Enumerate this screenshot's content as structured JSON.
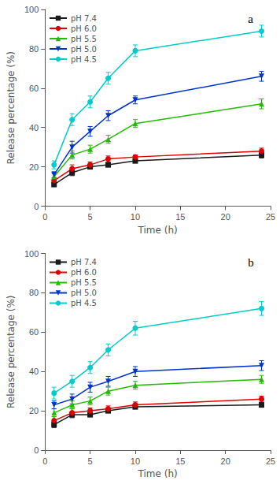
{
  "chart_data": [
    {
      "type": "line",
      "annotation": "a",
      "x": [
        1,
        3,
        5,
        7,
        10,
        24
      ],
      "series": [
        {
          "name": "pH 7.4",
          "color": "#1a1a1a",
          "marker": "square",
          "values": [
            11,
            17,
            20,
            21,
            23,
            26
          ],
          "errors": [
            1.0,
            1.5,
            1.0,
            1.0,
            1.0,
            1.5
          ]
        },
        {
          "name": "pH 6.0",
          "color": "#dd0000",
          "marker": "circle",
          "values": [
            13,
            19,
            21,
            24,
            25,
            28
          ],
          "errors": [
            1.5,
            2.0,
            1.5,
            1.5,
            1.0,
            1.5
          ]
        },
        {
          "name": "pH 5.5",
          "color": "#22bb00",
          "marker": "triangle-up",
          "values": [
            15,
            26,
            29,
            34,
            42,
            52
          ],
          "errors": [
            1.5,
            2.0,
            2.0,
            2.0,
            2.0,
            2.5
          ]
        },
        {
          "name": "pH 5.0",
          "color": "#0033cc",
          "marker": "triangle-down",
          "values": [
            16,
            30,
            38,
            46,
            54,
            66
          ],
          "errors": [
            1.5,
            3.0,
            2.5,
            2.5,
            2.0,
            2.5
          ]
        },
        {
          "name": "pH 4.5",
          "color": "#00cccc",
          "marker": "circle",
          "values": [
            21,
            44,
            53,
            65,
            79,
            89
          ],
          "errors": [
            2.0,
            3.0,
            3.0,
            3.0,
            3.0,
            3.0
          ]
        }
      ],
      "xlabel": "Time (h)",
      "ylabel": "Release percentage (%)",
      "xlim": [
        0,
        25
      ],
      "ylim": [
        0,
        100
      ],
      "xticks": [
        0,
        5,
        10,
        15,
        20,
        25
      ],
      "yticks": [
        0,
        20,
        40,
        60,
        80,
        100
      ],
      "grid": false,
      "legend": "upper left"
    },
    {
      "type": "line",
      "annotation": "b",
      "x": [
        1,
        3,
        5,
        7,
        10,
        24
      ],
      "series": [
        {
          "name": "pH 7.4",
          "color": "#1a1a1a",
          "marker": "square",
          "values": [
            13,
            18,
            18,
            20,
            22,
            23
          ],
          "errors": [
            1.5,
            1.5,
            1.0,
            1.0,
            1.0,
            1.0
          ]
        },
        {
          "name": "pH 6.0",
          "color": "#dd0000",
          "marker": "circle",
          "values": [
            15,
            19,
            20,
            21,
            23,
            26
          ],
          "errors": [
            2.0,
            2.0,
            1.5,
            1.5,
            1.5,
            1.5
          ]
        },
        {
          "name": "pH 5.5",
          "color": "#22bb00",
          "marker": "triangle-up",
          "values": [
            19,
            23,
            25,
            30,
            33,
            36
          ],
          "errors": [
            2.0,
            2.0,
            2.0,
            2.0,
            2.0,
            2.0
          ]
        },
        {
          "name": "pH 5.0",
          "color": "#0033cc",
          "marker": "triangle-down",
          "values": [
            23,
            26,
            32,
            35,
            40,
            43
          ],
          "errors": [
            2.0,
            2.5,
            2.5,
            2.5,
            2.5,
            2.5
          ]
        },
        {
          "name": "pH 4.5",
          "color": "#00cccc",
          "marker": "circle",
          "values": [
            29,
            35,
            42,
            51,
            62,
            72
          ],
          "errors": [
            3.0,
            3.0,
            3.0,
            3.0,
            3.5,
            3.5
          ]
        }
      ],
      "xlabel": "Time (h)",
      "ylabel": "Release percentage (%)",
      "xlim": [
        0,
        25
      ],
      "ylim": [
        0,
        100
      ],
      "xticks": [
        0,
        5,
        10,
        15,
        20,
        25
      ],
      "yticks": [
        0,
        20,
        40,
        60,
        80,
        100
      ],
      "grid": false,
      "legend": "upper left"
    }
  ]
}
